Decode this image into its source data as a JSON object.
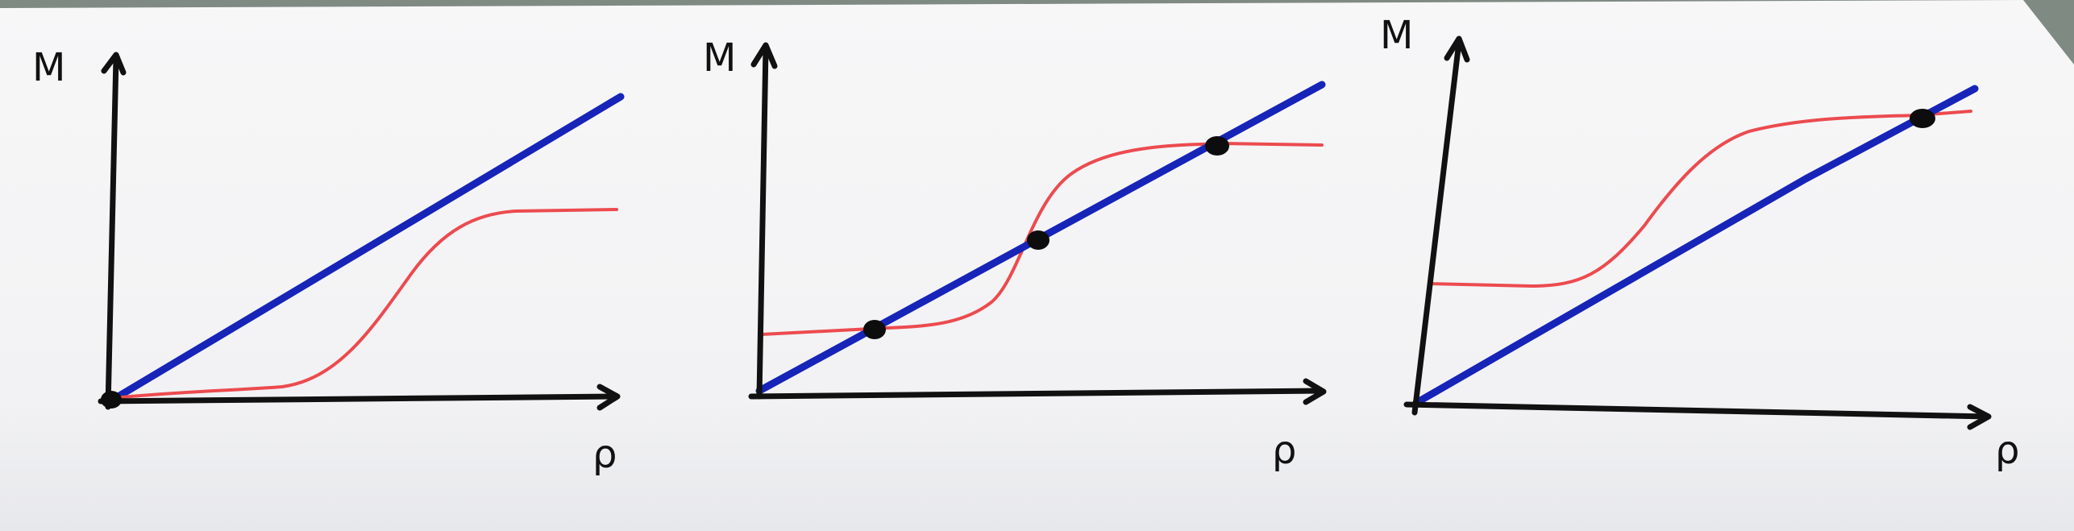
{
  "colors": {
    "axis": "#111111",
    "line": "#1624b8",
    "curve": "#ec4b4f",
    "point": "#0d0d0d",
    "paper": "#f4f4f5"
  },
  "panels": [
    {
      "y_axis_label": "M",
      "x_axis_label": "ρ",
      "intersections": 1
    },
    {
      "y_axis_label": "M",
      "x_axis_label": "ρ",
      "intersections": 3
    },
    {
      "y_axis_label": "M",
      "x_axis_label": "ρ",
      "intersections": 1
    }
  ]
}
